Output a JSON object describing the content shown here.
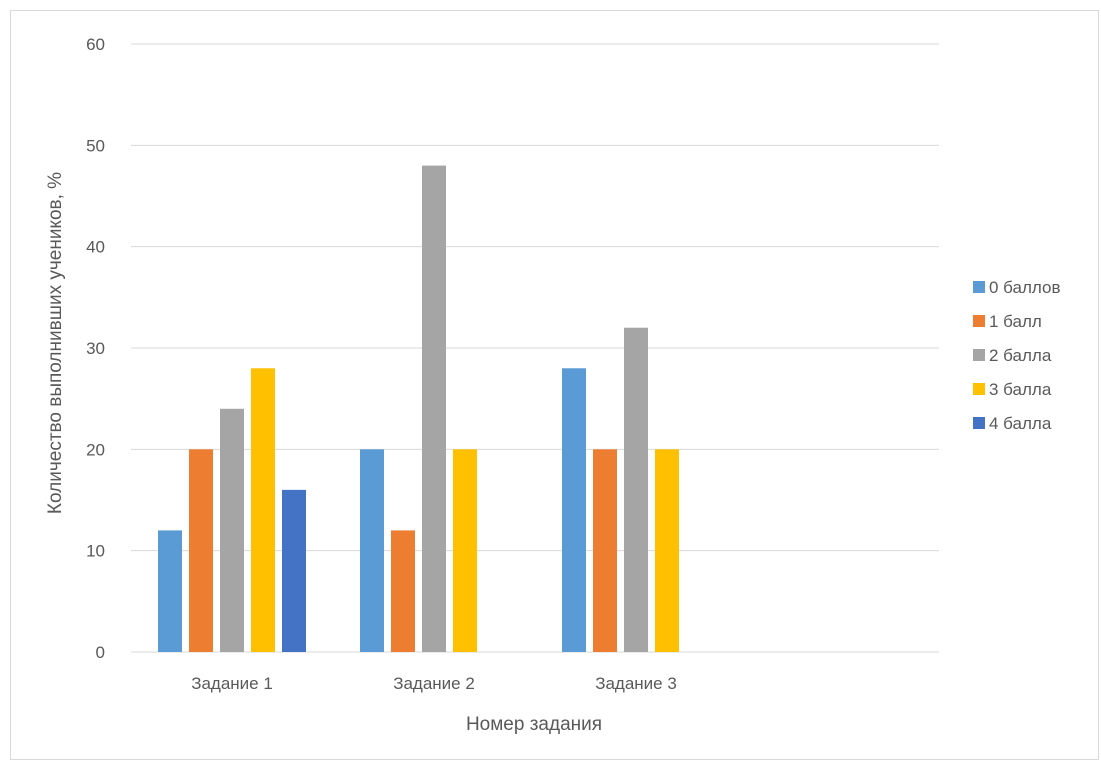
{
  "chart_data": {
    "type": "bar",
    "categories": [
      "Задание 1",
      "Задание 2",
      "Задание 3",
      ""
    ],
    "series": [
      {
        "name": "0 баллов",
        "color": "#5b9bd5",
        "values": [
          12,
          20,
          28,
          null
        ]
      },
      {
        "name": "1 балл",
        "color": "#ed7d31",
        "values": [
          20,
          12,
          20,
          null
        ]
      },
      {
        "name": "2 балла",
        "color": "#a5a5a5",
        "values": [
          24,
          48,
          32,
          null
        ]
      },
      {
        "name": "3 балла",
        "color": "#ffc000",
        "values": [
          28,
          20,
          20,
          null
        ]
      },
      {
        "name": "4 балла",
        "color": "#4472c4",
        "values": [
          16,
          null,
          null,
          null
        ]
      }
    ],
    "ylim": [
      0,
      60
    ],
    "yticks": [
      0,
      10,
      20,
      30,
      40,
      50,
      60
    ],
    "xlabel": "Номер задания",
    "ylabel": "Количество выполнивших учеников, %",
    "grid": true,
    "legend": "right"
  }
}
